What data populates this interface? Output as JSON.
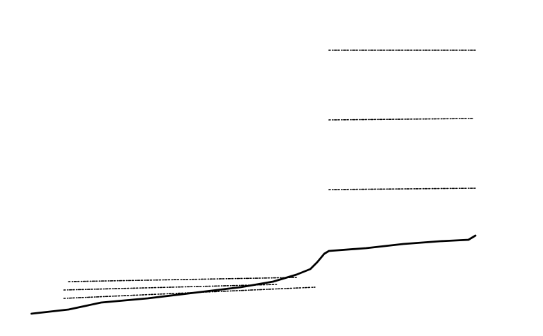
{
  "chart_data": {
    "type": "line",
    "title": "",
    "xlabel": "",
    "ylabel": "",
    "grid": false,
    "legend": "none",
    "xlim": [
      0,
      100
    ],
    "ylim": [
      0,
      100
    ],
    "series": [
      {
        "style": "solid",
        "color": "#000000",
        "x": [
          0,
          8,
          15,
          25,
          35,
          45,
          52,
          57,
          60,
          61.5,
          62.5,
          63,
          64,
          72,
          80,
          88,
          94,
          95.5
        ],
        "y": [
          7,
          8.5,
          11,
          12.5,
          14.5,
          16.5,
          18.5,
          21,
          23,
          25.5,
          27.5,
          28.5,
          29.5,
          30.5,
          32,
          33,
          33.5,
          35
        ]
      },
      {
        "style": "dotted",
        "color": "#000000",
        "x": [
          7,
          61
        ],
        "y": [
          12.5,
          16.5
        ]
      },
      {
        "style": "dotted",
        "color": "#000000",
        "x": [
          7,
          53
        ],
        "y": [
          15.5,
          17.5
        ]
      },
      {
        "style": "dotted",
        "color": "#000000",
        "x": [
          8,
          57
        ],
        "y": [
          18.5,
          20
        ]
      },
      {
        "style": "dotted",
        "color": "#000000",
        "x": [
          64,
          95.5
        ],
        "y": [
          51.5,
          52
        ]
      },
      {
        "style": "dotted",
        "color": "#000000",
        "x": [
          64,
          95
        ],
        "y": [
          76.5,
          77
        ]
      },
      {
        "style": "dotted",
        "color": "#000000",
        "x": [
          64,
          95.5
        ],
        "y": [
          101.5,
          101.5
        ]
      }
    ]
  }
}
